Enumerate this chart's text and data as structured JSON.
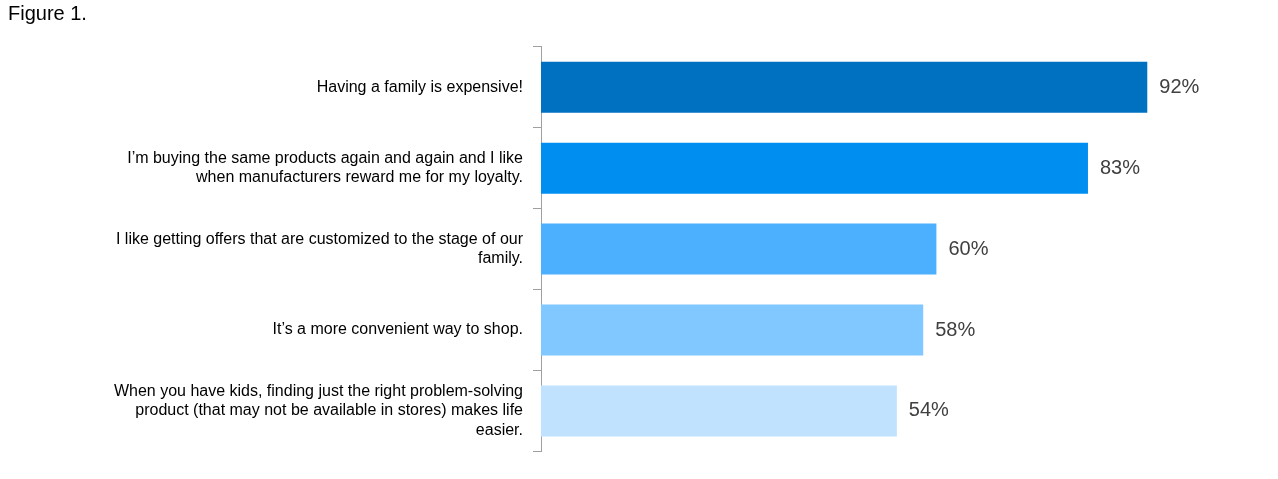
{
  "chart_data": {
    "type": "bar",
    "title": "Figure 1.",
    "orientation": "horizontal",
    "categories": [
      "Having a family is expensive!",
      "I’m buying the same products again and again and I like when manufacturers reward me for my loyalty.",
      "I like getting offers that are customized to the stage of our family.",
      "It’s a more convenient way to shop.",
      "When you have kids, finding just the right problem-solving product (that may not be available in stores) makes life easier."
    ],
    "values": [
      92,
      83,
      60,
      58,
      54
    ],
    "colors": [
      "#0070c0",
      "#008ef0",
      "#4db0ff",
      "#80c8ff",
      "#c0e2ff"
    ],
    "value_labels": [
      "92%",
      "83%",
      "60%",
      "58%",
      "54%"
    ],
    "tick_labels": "y",
    "grid": false,
    "legend": false
  }
}
